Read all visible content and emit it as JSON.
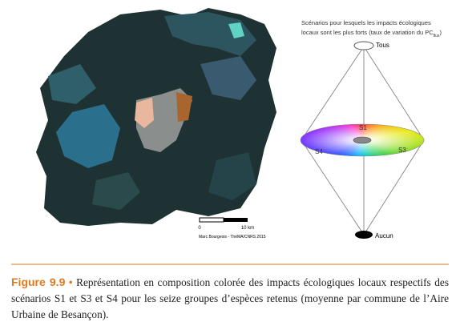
{
  "diagram": {
    "title_line1": "Scénarios pour lesquels les impacts écologiques",
    "title_line2": "locaux sont les plus forts (taux de variation du PC",
    "title_sub": "flux",
    "title_end": ")",
    "top_label": "Tous",
    "bottom_label": "Aucun",
    "s1": "S1",
    "s3": "S3",
    "s4": "S4"
  },
  "map": {
    "scale_start": "0",
    "scale_end": "10 km",
    "credit": "Marc Bourgeois - ThéMA/CNRS 2015"
  },
  "caption": {
    "label": "Figure 9.9",
    "bullet": "•",
    "text": "Représentation en composition colorée des impacts écologiques locaux respectifs des scénarios S1 et S3 et S4 pour les seize groupes d’espèces retenus (moyenne par commune de l’Aire Urbaine de Besançon)."
  }
}
